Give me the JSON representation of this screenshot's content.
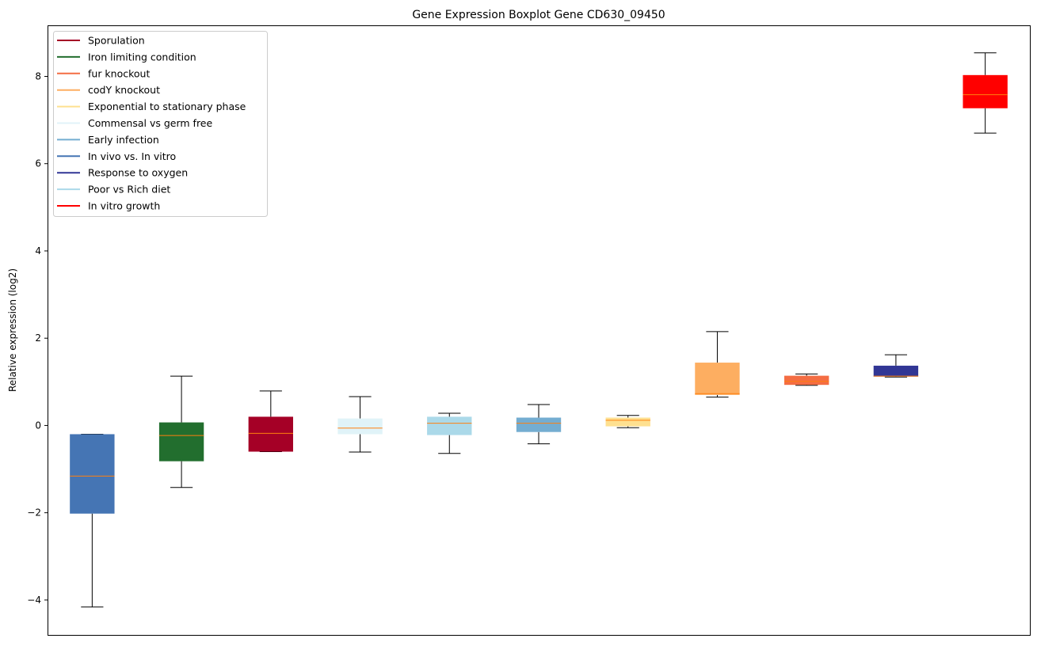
{
  "chart_data": {
    "type": "boxplot",
    "title": "Gene Expression Boxplot Gene CD630_09450",
    "xlabel": "",
    "ylabel": "Relative expression (log2)",
    "ylim": [
      -4.8,
      9.17
    ],
    "yticks": [
      -4,
      -2,
      0,
      2,
      4,
      6,
      8
    ],
    "grid": false,
    "legend_placement": "upper-left",
    "legend": [
      {
        "label": "Sporulation",
        "color": "#a50026"
      },
      {
        "label": "Iron limiting condition",
        "color": "#226e2e"
      },
      {
        "label": "fur knockout",
        "color": "#f46d43"
      },
      {
        "label": "codY knockout",
        "color": "#fdae61"
      },
      {
        "label": "Exponential to stationary phase",
        "color": "#fee090"
      },
      {
        "label": "Commensal vs germ free",
        "color": "#e0f3f8"
      },
      {
        "label": "Early infection",
        "color": "#74add1"
      },
      {
        "label": "In vivo vs. In vitro",
        "color": "#4575b4"
      },
      {
        "label": "Response to oxygen",
        "color": "#313695"
      },
      {
        "label": "Poor vs Rich diet",
        "color": "#abd9e9"
      },
      {
        "label": "In vitro growth",
        "color": "#ff0000"
      }
    ],
    "boxes": [
      {
        "group": "In vivo vs. In vitro",
        "color": "#4575b4",
        "whislo": -4.16,
        "q1": -2.02,
        "median": -1.16,
        "q3": -0.2,
        "whishi": -0.2
      },
      {
        "group": "Iron limiting condition",
        "color": "#226e2e",
        "whislo": -1.42,
        "q1": -0.82,
        "median": -0.23,
        "q3": 0.07,
        "whishi": 1.13
      },
      {
        "group": "Sporulation",
        "color": "#a50026",
        "whislo": -0.6,
        "q1": -0.6,
        "median": -0.18,
        "q3": 0.2,
        "whishi": 0.79
      },
      {
        "group": "Commensal vs germ free",
        "color": "#e0f3f8",
        "whislo": -0.61,
        "q1": -0.2,
        "median": -0.06,
        "q3": 0.16,
        "whishi": 0.66
      },
      {
        "group": "Poor vs Rich diet",
        "color": "#abd9e9",
        "whislo": -0.64,
        "q1": -0.22,
        "median": 0.05,
        "q3": 0.2,
        "whishi": 0.28
      },
      {
        "group": "Early infection",
        "color": "#74add1",
        "whislo": -0.42,
        "q1": -0.15,
        "median": 0.05,
        "q3": 0.18,
        "whishi": 0.48
      },
      {
        "group": "Exponential to stationary phase",
        "color": "#fee090",
        "whislo": -0.05,
        "q1": -0.02,
        "median": 0.12,
        "q3": 0.18,
        "whishi": 0.23
      },
      {
        "group": "codY knockout",
        "color": "#fdae61",
        "whislo": 0.65,
        "q1": 0.7,
        "median": 0.73,
        "q3": 1.44,
        "whishi": 2.15
      },
      {
        "group": "fur knockout",
        "color": "#f46d43",
        "whislo": 0.92,
        "q1": 0.93,
        "median": 1.01,
        "q3": 1.14,
        "whishi": 1.18
      },
      {
        "group": "Response to oxygen",
        "color": "#313695",
        "whislo": 1.11,
        "q1": 1.12,
        "median": 1.13,
        "q3": 1.37,
        "whishi": 1.62
      },
      {
        "group": "In vitro growth",
        "color": "#ff0000",
        "whislo": 6.7,
        "q1": 7.27,
        "median": 7.58,
        "q3": 8.03,
        "whishi": 8.54
      }
    ],
    "median_color": "#ff7f0e"
  }
}
